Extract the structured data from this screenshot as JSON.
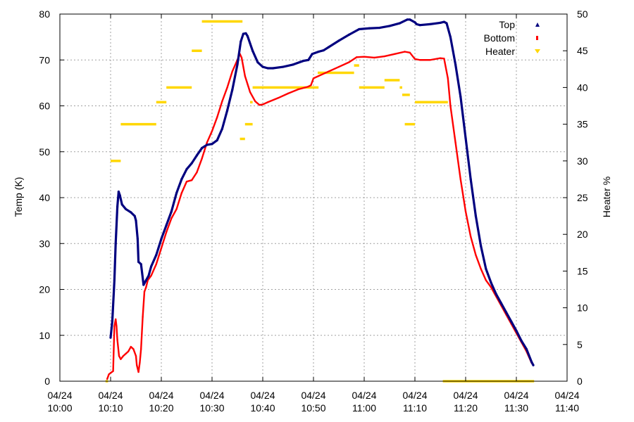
{
  "chart_data": {
    "type": "line",
    "title": "",
    "xlabel": "",
    "ylabel": "Temp (K)",
    "y2label": "Heater %",
    "xlim": [
      "10:00",
      "11:40"
    ],
    "ylim": [
      0,
      80
    ],
    "y2lim": [
      0,
      50
    ],
    "grid": true,
    "legend_position": "top-right",
    "x_ticks": [
      {
        "date": "04/24",
        "time": "10:00"
      },
      {
        "date": "04/24",
        "time": "10:10"
      },
      {
        "date": "04/24",
        "time": "10:20"
      },
      {
        "date": "04/24",
        "time": "10:30"
      },
      {
        "date": "04/24",
        "time": "10:40"
      },
      {
        "date": "04/24",
        "time": "10:50"
      },
      {
        "date": "04/24",
        "time": "11:00"
      },
      {
        "date": "04/24",
        "time": "11:10"
      },
      {
        "date": "04/24",
        "time": "11:20"
      },
      {
        "date": "04/24",
        "time": "11:30"
      },
      {
        "date": "04/24",
        "time": "11:40"
      }
    ],
    "y_ticks": [
      "0",
      "10",
      "20",
      "30",
      "40",
      "50",
      "60",
      "70",
      "80"
    ],
    "y2_ticks": [
      "0",
      "5",
      "10",
      "15",
      "20",
      "25",
      "30",
      "35",
      "40",
      "45",
      "50"
    ],
    "series": [
      {
        "name": "Top",
        "axis": "left",
        "color": "#00007f",
        "points": [
          [
            "10:10:00",
            9.5
          ],
          [
            "10:10:20",
            13
          ],
          [
            "10:10:45",
            22
          ],
          [
            "10:11:00",
            30
          ],
          [
            "10:11:20",
            38
          ],
          [
            "10:11:35",
            41.3
          ],
          [
            "10:11:50",
            40.5
          ],
          [
            "10:12:15",
            38.5
          ],
          [
            "10:13:00",
            37.5
          ],
          [
            "10:14:00",
            36.8
          ],
          [
            "10:14:45",
            36
          ],
          [
            "10:15:00",
            35
          ],
          [
            "10:15:20",
            31
          ],
          [
            "10:15:30",
            26
          ],
          [
            "10:16:00",
            25.5
          ],
          [
            "10:16:30",
            21
          ],
          [
            "10:17:00",
            22
          ],
          [
            "10:17:30",
            23
          ],
          [
            "10:18:00",
            25
          ],
          [
            "10:19:00",
            27.5
          ],
          [
            "10:20:00",
            31
          ],
          [
            "10:21:00",
            34
          ],
          [
            "10:22:00",
            37
          ],
          [
            "10:23:00",
            41
          ],
          [
            "10:24:00",
            44
          ],
          [
            "10:25:00",
            46.2
          ],
          [
            "10:26:00",
            47.5
          ],
          [
            "10:27:00",
            49.2
          ],
          [
            "10:28:00",
            50.8
          ],
          [
            "10:29:00",
            51.5
          ],
          [
            "10:30:00",
            51.7
          ],
          [
            "10:31:00",
            52.5
          ],
          [
            "10:32:00",
            55
          ],
          [
            "10:33:00",
            59
          ],
          [
            "10:34:00",
            63.5
          ],
          [
            "10:35:00",
            69
          ],
          [
            "10:35:40",
            74
          ],
          [
            "10:36:10",
            75.7
          ],
          [
            "10:36:40",
            75.8
          ],
          [
            "10:37:00",
            75.2
          ],
          [
            "10:38:00",
            72
          ],
          [
            "10:39:00",
            69.5
          ],
          [
            "10:40:00",
            68.5
          ],
          [
            "10:41:00",
            68.2
          ],
          [
            "10:42:00",
            68.2
          ],
          [
            "10:44:00",
            68.5
          ],
          [
            "10:46:00",
            69
          ],
          [
            "10:48:00",
            69.8
          ],
          [
            "10:49:00",
            70
          ],
          [
            "10:49:45",
            71.3
          ],
          [
            "10:51:00",
            71.8
          ],
          [
            "10:52:00",
            72.1
          ],
          [
            "10:53:00",
            72.8
          ],
          [
            "10:55:00",
            74.2
          ],
          [
            "10:57:00",
            75.5
          ],
          [
            "10:59:00",
            76.7
          ],
          [
            "11:01:00",
            76.9
          ],
          [
            "11:03:00",
            77
          ],
          [
            "11:05:00",
            77.4
          ],
          [
            "11:07:00",
            78
          ],
          [
            "11:08:30",
            78.8
          ],
          [
            "11:09:00",
            78.8
          ],
          [
            "11:10:00",
            78.2
          ],
          [
            "11:10:20",
            77.8
          ],
          [
            "11:11:00",
            77.6
          ],
          [
            "11:13:00",
            77.8
          ],
          [
            "11:15:00",
            78.1
          ],
          [
            "11:15:45",
            78.3
          ],
          [
            "11:16:15",
            78
          ],
          [
            "11:17:00",
            75
          ],
          [
            "11:18:00",
            69
          ],
          [
            "11:19:00",
            62
          ],
          [
            "11:20:00",
            53
          ],
          [
            "11:21:00",
            44
          ],
          [
            "11:22:00",
            36
          ],
          [
            "11:23:00",
            29.5
          ],
          [
            "11:24:00",
            24.5
          ],
          [
            "11:25:00",
            21.5
          ],
          [
            "11:26:00",
            19
          ],
          [
            "11:27:00",
            17
          ],
          [
            "11:28:00",
            15
          ],
          [
            "11:29:00",
            13
          ],
          [
            "11:30:00",
            11
          ],
          [
            "11:31:00",
            8.8
          ],
          [
            "11:32:00",
            7
          ],
          [
            "11:33:00",
            4.2
          ],
          [
            "11:33:20",
            3.5
          ]
        ]
      },
      {
        "name": "Bottom",
        "axis": "left",
        "color": "#ff0000",
        "points": [
          [
            "10:09:20",
            0.5
          ],
          [
            "10:09:40",
            1.5
          ],
          [
            "10:10:00",
            1.8
          ],
          [
            "10:10:30",
            2.2
          ],
          [
            "10:10:45",
            12
          ],
          [
            "10:11:00",
            13.5
          ],
          [
            "10:11:10",
            12
          ],
          [
            "10:11:20",
            9
          ],
          [
            "10:11:40",
            5.5
          ],
          [
            "10:12:00",
            4.8
          ],
          [
            "10:12:30",
            5.5
          ],
          [
            "10:13:00",
            6
          ],
          [
            "10:13:30",
            6.5
          ],
          [
            "10:14:00",
            7.5
          ],
          [
            "10:14:30",
            7
          ],
          [
            "10:15:00",
            5.5
          ],
          [
            "10:15:10",
            3.5
          ],
          [
            "10:15:30",
            2
          ],
          [
            "10:15:45",
            4
          ],
          [
            "10:16:00",
            7
          ],
          [
            "10:16:20",
            14
          ],
          [
            "10:16:40",
            19.5
          ],
          [
            "10:17:00",
            20.5
          ],
          [
            "10:17:20",
            22
          ],
          [
            "10:18:00",
            23
          ],
          [
            "10:19:00",
            25.5
          ],
          [
            "10:20:00",
            29
          ],
          [
            "10:21:00",
            32.5
          ],
          [
            "10:22:00",
            35.5
          ],
          [
            "10:23:00",
            37.5
          ],
          [
            "10:24:00",
            41
          ],
          [
            "10:25:00",
            43.5
          ],
          [
            "10:26:00",
            43.8
          ],
          [
            "10:27:00",
            45.5
          ],
          [
            "10:28:00",
            48.5
          ],
          [
            "10:29:00",
            52
          ],
          [
            "10:30:00",
            54.5
          ],
          [
            "10:31:00",
            57.5
          ],
          [
            "10:32:00",
            61
          ],
          [
            "10:33:00",
            64
          ],
          [
            "10:34:00",
            67.5
          ],
          [
            "10:35:00",
            70
          ],
          [
            "10:35:30",
            71.3
          ],
          [
            "10:35:50",
            70.5
          ],
          [
            "10:36:30",
            66.5
          ],
          [
            "10:37:30",
            63
          ],
          [
            "10:38:30",
            61
          ],
          [
            "10:39:20",
            60.2
          ],
          [
            "10:40:00",
            60.3
          ],
          [
            "10:41:00",
            60.8
          ],
          [
            "10:43:00",
            61.7
          ],
          [
            "10:45:00",
            62.7
          ],
          [
            "10:47:00",
            63.6
          ],
          [
            "10:49:00",
            64.2
          ],
          [
            "10:49:30",
            64.5
          ],
          [
            "10:50:00",
            66
          ],
          [
            "10:51:00",
            66.5
          ],
          [
            "10:53:00",
            67.5
          ],
          [
            "10:55:00",
            68.5
          ],
          [
            "10:57:00",
            69.5
          ],
          [
            "10:58:30",
            70.6
          ],
          [
            "11:00:00",
            70.7
          ],
          [
            "11:02:00",
            70.5
          ],
          [
            "11:04:00",
            70.8
          ],
          [
            "11:06:00",
            71.3
          ],
          [
            "11:08:00",
            71.8
          ],
          [
            "11:09:00",
            71.6
          ],
          [
            "11:10:00",
            70.2
          ],
          [
            "11:11:00",
            70
          ],
          [
            "11:13:00",
            70
          ],
          [
            "11:15:00",
            70.4
          ],
          [
            "11:15:45",
            70.3
          ],
          [
            "11:16:30",
            66
          ],
          [
            "11:17:00",
            60
          ],
          [
            "11:18:00",
            52
          ],
          [
            "11:19:00",
            44
          ],
          [
            "11:20:00",
            37
          ],
          [
            "11:21:00",
            31.5
          ],
          [
            "11:22:00",
            27.5
          ],
          [
            "11:23:00",
            24.5
          ],
          [
            "11:24:00",
            22
          ],
          [
            "11:25:00",
            20.5
          ],
          [
            "11:26:00",
            18.5
          ],
          [
            "11:27:00",
            16.5
          ],
          [
            "11:28:00",
            14.5
          ],
          [
            "11:29:00",
            12.5
          ],
          [
            "11:30:00",
            10.5
          ],
          [
            "11:31:00",
            8.5
          ],
          [
            "11:32:00",
            6.5
          ],
          [
            "11:33:00",
            4
          ],
          [
            "11:33:20",
            3.5
          ]
        ]
      },
      {
        "name": "Heater",
        "axis": "right",
        "color": "#ffd700",
        "segments": [
          [
            [
              "10:09:00",
              0
            ],
            [
              "10:09:30",
              0
            ]
          ],
          [
            [
              "10:10:00",
              30
            ],
            [
              "10:12:00",
              30
            ]
          ],
          [
            [
              "10:12:00",
              35
            ],
            [
              "10:19:00",
              35
            ]
          ],
          [
            [
              "10:19:00",
              38
            ],
            [
              "10:21:00",
              38
            ]
          ],
          [
            [
              "10:21:00",
              40
            ],
            [
              "10:26:00",
              40
            ]
          ],
          [
            [
              "10:26:00",
              45
            ],
            [
              "10:28:00",
              45
            ]
          ],
          [
            [
              "10:28:00",
              49
            ],
            [
              "10:36:00",
              49
            ]
          ],
          [
            [
              "10:35:30",
              33
            ],
            [
              "10:36:30",
              33
            ]
          ],
          [
            [
              "10:36:30",
              35
            ],
            [
              "10:38:00",
              35
            ]
          ],
          [
            [
              "10:37:30",
              38
            ],
            [
              "10:38:00",
              38
            ]
          ],
          [
            [
              "10:38:00",
              40
            ],
            [
              "10:51:00",
              40
            ]
          ],
          [
            [
              "10:50:50",
              42
            ],
            [
              "10:58:00",
              42
            ]
          ],
          [
            [
              "10:58:00",
              43
            ],
            [
              "10:59:00",
              43
            ]
          ],
          [
            [
              "10:59:00",
              40
            ],
            [
              "11:04:00",
              40
            ]
          ],
          [
            [
              "11:04:00",
              41
            ],
            [
              "11:07:00",
              41
            ]
          ],
          [
            [
              "11:07:00",
              40
            ],
            [
              "11:07:30",
              40
            ]
          ],
          [
            [
              "11:07:30",
              39
            ],
            [
              "11:09:00",
              39
            ]
          ],
          [
            [
              "11:08:00",
              35
            ],
            [
              "11:10:00",
              35
            ]
          ],
          [
            [
              "11:10:00",
              38
            ],
            [
              "11:16:30",
              38
            ]
          ],
          [
            [
              "11:15:30",
              0
            ],
            [
              "11:33:30",
              0
            ]
          ]
        ]
      }
    ]
  }
}
